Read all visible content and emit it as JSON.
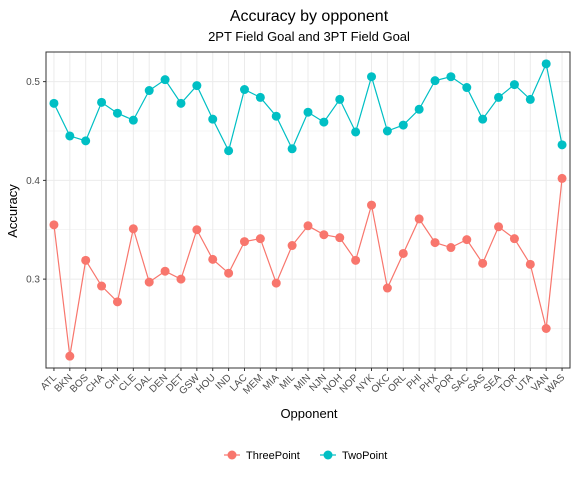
{
  "chart_data": {
    "type": "line",
    "title": "Accuracy by opponent",
    "subtitle": "2PT Field Goal and 3PT Field Goal",
    "xlabel": "Opponent",
    "ylabel": "Accuracy",
    "ylim": [
      0.21,
      0.53
    ],
    "yticks": [
      0.3,
      0.4,
      0.5
    ],
    "ytick_labels": [
      "0.3",
      "0.4",
      "0.5"
    ],
    "grid": true,
    "legend_position": "bottom",
    "categories": [
      "ATL",
      "BKN",
      "BOS",
      "CHA",
      "CHI",
      "CLE",
      "DAL",
      "DEN",
      "DET",
      "GSW",
      "HOU",
      "IND",
      "LAC",
      "MEM",
      "MIA",
      "MIL",
      "MIN",
      "NJN",
      "NOH",
      "NOP",
      "NYK",
      "OKC",
      "ORL",
      "PHI",
      "PHX",
      "POR",
      "SAC",
      "SAS",
      "SEA",
      "TOR",
      "UTA",
      "VAN",
      "WAS"
    ],
    "series": [
      {
        "name": "ThreePoint",
        "color": "#F8766D",
        "values": [
          0.355,
          0.222,
          0.319,
          0.293,
          0.277,
          0.351,
          0.297,
          0.308,
          0.3,
          0.35,
          0.32,
          0.306,
          0.338,
          0.341,
          0.296,
          0.334,
          0.354,
          0.345,
          0.342,
          0.319,
          0.375,
          0.291,
          0.326,
          0.361,
          0.337,
          0.332,
          0.34,
          0.316,
          0.353,
          0.341,
          0.315,
          0.25,
          0.402
        ]
      },
      {
        "name": "TwoPoint",
        "color": "#00BFC4",
        "values": [
          0.478,
          0.445,
          0.44,
          0.479,
          0.468,
          0.461,
          0.491,
          0.502,
          0.478,
          0.496,
          0.462,
          0.43,
          0.492,
          0.484,
          0.465,
          0.432,
          0.469,
          0.459,
          0.482,
          0.449,
          0.505,
          0.45,
          0.456,
          0.472,
          0.501,
          0.505,
          0.494,
          0.462,
          0.484,
          0.497,
          0.482,
          0.518,
          0.436
        ]
      }
    ]
  }
}
